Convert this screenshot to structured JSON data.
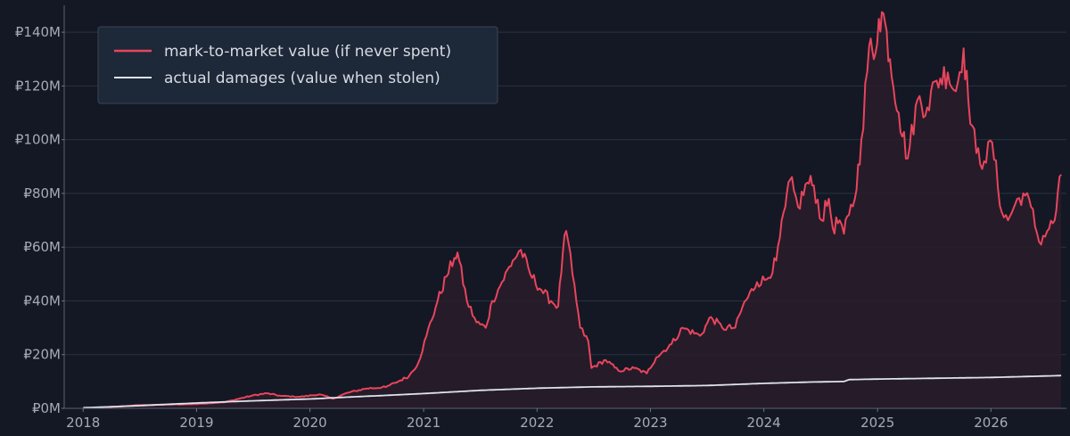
{
  "chart_data": {
    "type": "line",
    "title": "",
    "xlabel": "",
    "ylabel": "",
    "x_axis": {
      "type": "time",
      "range": [
        "2017-11-01",
        "2026-09-01"
      ],
      "ticks": [
        "2018",
        "2019",
        "2020",
        "2021",
        "2022",
        "2023",
        "2024",
        "2025",
        "2026"
      ]
    },
    "y_axis": {
      "range": [
        0,
        150000000
      ],
      "ticks": [
        0,
        20000000,
        40000000,
        60000000,
        80000000,
        100000000,
        120000000,
        140000000
      ],
      "tick_labels": [
        "₽0M",
        "₽20M",
        "₽40M",
        "₽60M",
        "₽80M",
        "₽100M",
        "₽120M",
        "₽140M"
      ]
    },
    "grid": "horizontal",
    "legend": {
      "placement": "top-left"
    },
    "colors": {
      "background": "#131824",
      "grid": "#2a3240",
      "mark_to_market": "#e8455c",
      "actual_damages": "#dde3ec",
      "fill": "#2a1c2a",
      "legend_bg": "#1d2838",
      "legend_border": "#3a4555"
    },
    "series": [
      {
        "name": "mark-to-market value (if never spent)",
        "color_key": "mark_to_market",
        "filled": true,
        "points": [
          [
            "2018-01-01",
            0.2
          ],
          [
            "2018-04-01",
            0.5
          ],
          [
            "2018-07-01",
            1.2
          ],
          [
            "2018-10-01",
            1.4
          ],
          [
            "2019-01-01",
            1.6
          ],
          [
            "2019-04-01",
            2.3
          ],
          [
            "2019-07-01",
            4.8
          ],
          [
            "2019-08-15",
            5.6
          ],
          [
            "2019-10-01",
            4.6
          ],
          [
            "2019-12-01",
            4.3
          ],
          [
            "2020-02-01",
            5.2
          ],
          [
            "2020-03-15",
            3.6
          ],
          [
            "2020-05-01",
            5.8
          ],
          [
            "2020-07-01",
            7.4
          ],
          [
            "2020-09-01",
            7.9
          ],
          [
            "2020-10-01",
            9.5
          ],
          [
            "2020-11-15",
            12
          ],
          [
            "2020-12-15",
            17
          ],
          [
            "2021-01-10",
            27
          ],
          [
            "2021-02-15",
            40
          ],
          [
            "2021-03-15",
            49
          ],
          [
            "2021-04-10",
            56
          ],
          [
            "2021-04-20",
            58
          ],
          [
            "2021-05-20",
            40
          ],
          [
            "2021-06-20",
            32
          ],
          [
            "2021-07-20",
            30
          ],
          [
            "2021-08-10",
            40
          ],
          [
            "2021-09-10",
            47
          ],
          [
            "2021-10-15",
            55
          ],
          [
            "2021-11-10",
            59
          ],
          [
            "2021-12-10",
            50
          ],
          [
            "2022-01-15",
            44
          ],
          [
            "2022-02-15",
            40
          ],
          [
            "2022-03-10",
            38
          ],
          [
            "2022-03-25",
            58
          ],
          [
            "2022-04-05",
            66
          ],
          [
            "2022-04-25",
            50
          ],
          [
            "2022-05-20",
            30
          ],
          [
            "2022-06-15",
            25
          ],
          [
            "2022-06-25",
            15
          ],
          [
            "2022-08-10",
            18
          ],
          [
            "2022-09-20",
            14
          ],
          [
            "2022-11-10",
            15
          ],
          [
            "2022-12-20",
            13
          ],
          [
            "2023-01-20",
            19
          ],
          [
            "2023-03-10",
            24
          ],
          [
            "2023-04-15",
            30
          ],
          [
            "2023-06-10",
            27
          ],
          [
            "2023-07-15",
            34
          ],
          [
            "2023-08-20",
            30
          ],
          [
            "2023-10-01",
            30
          ],
          [
            "2023-10-25",
            38
          ],
          [
            "2023-12-10",
            47
          ],
          [
            "2024-01-10",
            48
          ],
          [
            "2024-02-10",
            55
          ],
          [
            "2024-03-10",
            75
          ],
          [
            "2024-03-25",
            85
          ],
          [
            "2024-04-20",
            75
          ],
          [
            "2024-05-20",
            84
          ],
          [
            "2024-06-10",
            83
          ],
          [
            "2024-07-05",
            70
          ],
          [
            "2024-07-28",
            78
          ],
          [
            "2024-08-10",
            67
          ],
          [
            "2024-09-01",
            70
          ],
          [
            "2024-09-15",
            65
          ],
          [
            "2024-10-01",
            72
          ],
          [
            "2024-10-20",
            78
          ],
          [
            "2024-11-10",
            100
          ],
          [
            "2024-12-05",
            135
          ],
          [
            "2024-12-20",
            130
          ],
          [
            "2025-01-05",
            145
          ],
          [
            "2025-01-20",
            147
          ],
          [
            "2025-02-10",
            130
          ],
          [
            "2025-03-10",
            110
          ],
          [
            "2025-04-08",
            93
          ],
          [
            "2025-05-10",
            115
          ],
          [
            "2025-06-10",
            112
          ],
          [
            "2025-07-10",
            122
          ],
          [
            "2025-08-15",
            125
          ],
          [
            "2025-09-10",
            118
          ],
          [
            "2025-10-05",
            134
          ],
          [
            "2025-10-20",
            115
          ],
          [
            "2025-11-15",
            95
          ],
          [
            "2025-12-10",
            92
          ],
          [
            "2026-01-05",
            99
          ],
          [
            "2026-02-05",
            73
          ],
          [
            "2026-02-25",
            70
          ],
          [
            "2026-03-20",
            76
          ],
          [
            "2026-04-15",
            80
          ],
          [
            "2026-05-10",
            75
          ],
          [
            "2026-06-05",
            62
          ],
          [
            "2026-07-01",
            66
          ],
          [
            "2026-07-25",
            70
          ],
          [
            "2026-08-15",
            87
          ]
        ]
      },
      {
        "name": "actual damages (value when stolen)",
        "color_key": "actual_damages",
        "filled": false,
        "points": [
          [
            "2018-01-01",
            0.2
          ],
          [
            "2018-07-01",
            1.0
          ],
          [
            "2019-01-01",
            2.0
          ],
          [
            "2019-07-01",
            2.8
          ],
          [
            "2020-01-01",
            3.5
          ],
          [
            "2020-07-01",
            4.5
          ],
          [
            "2021-01-01",
            5.5
          ],
          [
            "2021-07-01",
            6.7
          ],
          [
            "2022-01-01",
            7.5
          ],
          [
            "2022-07-01",
            8.0
          ],
          [
            "2023-01-01",
            8.2
          ],
          [
            "2023-07-01",
            8.5
          ],
          [
            "2024-01-01",
            9.3
          ],
          [
            "2024-06-01",
            9.8
          ],
          [
            "2024-09-15",
            10.0
          ],
          [
            "2024-10-01",
            10.7
          ],
          [
            "2025-01-01",
            10.9
          ],
          [
            "2025-07-01",
            11.2
          ],
          [
            "2026-01-01",
            11.5
          ],
          [
            "2026-08-15",
            12.2
          ]
        ]
      }
    ],
    "value_unit_note": "series y values are in millions (₽M)"
  }
}
